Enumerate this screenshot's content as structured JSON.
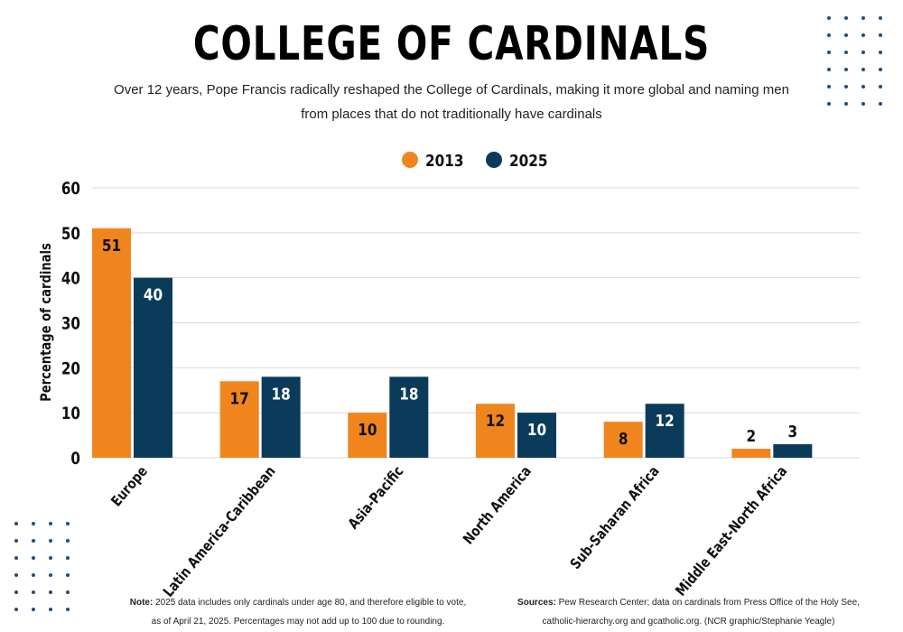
{
  "header": {
    "title": "COLLEGE OF CARDINALS",
    "subtitle": "Over 12 years, Pope Francis radically reshaped the College of Cardinals, making it more global and naming men from places that do not traditionally have cardinals"
  },
  "colors": {
    "series_2013": "#f0851e",
    "series_2025": "#0b3b5b",
    "grid": "#d9d9d9",
    "dots": "#1f4e79"
  },
  "chart_data": {
    "type": "bar",
    "title": "",
    "xlabel": "",
    "ylabel": "Percentage of cardinals",
    "ylim": [
      0,
      60
    ],
    "yticks": [
      0,
      10,
      20,
      30,
      40,
      50,
      60
    ],
    "grid": true,
    "legend_position": "top-center",
    "categories": [
      "Europe",
      "Latin America-Caribbean",
      "Asia-Pacific",
      "North America",
      "Sub-Saharan Africa",
      "Middle East-North Africa"
    ],
    "series": [
      {
        "name": "2013",
        "values": [
          51,
          17,
          10,
          12,
          8,
          2
        ]
      },
      {
        "name": "2025",
        "values": [
          40,
          18,
          18,
          10,
          12,
          3
        ]
      }
    ]
  },
  "footer": {
    "note_label": "Note:",
    "note_line1": "2025 data includes only cardinals under age 80, and therefore eligible to vote,",
    "note_line2": "as of April 21, 2025. Percentages may not add up to 100 due to rounding.",
    "sources_label": "Sources:",
    "sources_line1": "Pew Research Center; data on cardinals from Press Office of the Holy See,",
    "sources_line2": "catholic-hierarchy.org and gcatholic.org.  (NCR graphic/Stephanie Yeagle)"
  }
}
